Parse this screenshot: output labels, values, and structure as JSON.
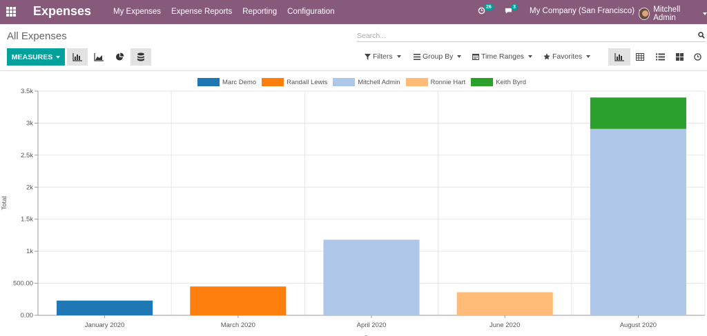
{
  "app": {
    "title": "Expenses"
  },
  "menu": [
    "My Expenses",
    "Expense Reports",
    "Reporting",
    "Configuration"
  ],
  "systray": {
    "activity_count": "26",
    "message_count": "3",
    "company": "My Company (San Francisco)",
    "user": "Mitchell Admin"
  },
  "breadcrumb": "All Expenses",
  "search": {
    "placeholder": "Search..."
  },
  "buttons": {
    "measures": "MEASURES"
  },
  "filters": {
    "filters": "Filters",
    "group_by": "Group By",
    "time_ranges": "Time Ranges",
    "favorites": "Favorites"
  },
  "colors": {
    "navbar": "#875a7b",
    "primary": "#00a09d"
  },
  "chart_data": {
    "type": "bar",
    "stacked": true,
    "categories": [
      "January 2020",
      "March 2020",
      "April 2020",
      "June 2020",
      "August 2020"
    ],
    "series": [
      {
        "name": "Marc Demo",
        "color": "#1f77b4",
        "values": [
          230,
          0,
          0,
          0,
          0
        ]
      },
      {
        "name": "Randall Lewis",
        "color": "#ff7f0e",
        "values": [
          0,
          450,
          0,
          0,
          0
        ]
      },
      {
        "name": "Mitchell Admin",
        "color": "#aec7e8",
        "values": [
          0,
          0,
          1180,
          0,
          2910
        ]
      },
      {
        "name": "Ronnie Hart",
        "color": "#ffbb78",
        "values": [
          0,
          0,
          0,
          360,
          0
        ]
      },
      {
        "name": "Keith Byrd",
        "color": "#2ca02c",
        "values": [
          0,
          0,
          0,
          0,
          490
        ]
      }
    ],
    "ylabel": "Total",
    "xlabel": "Date",
    "ylim": [
      0,
      3500
    ],
    "yticks": [
      {
        "value": 0,
        "label": "0.00"
      },
      {
        "value": 500,
        "label": "500.00"
      },
      {
        "value": 1000,
        "label": "1k"
      },
      {
        "value": 1500,
        "label": "1.5k"
      },
      {
        "value": 2000,
        "label": "2k"
      },
      {
        "value": 2500,
        "label": "2.5k"
      },
      {
        "value": 3000,
        "label": "3k"
      },
      {
        "value": 3500,
        "label": "3.5k"
      }
    ],
    "legend_position": "top",
    "grid": true
  }
}
